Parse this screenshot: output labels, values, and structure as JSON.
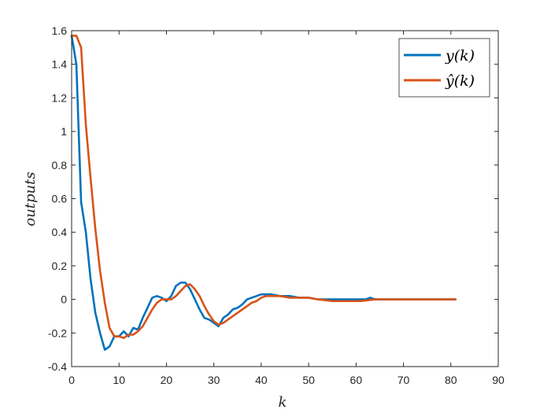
{
  "chart_data": {
    "type": "line",
    "title": "",
    "xlabel": "k",
    "ylabel": "outputs",
    "xlim": [
      0,
      90
    ],
    "ylim": [
      -0.4,
      1.6
    ],
    "x_ticks": [
      0,
      10,
      20,
      30,
      40,
      50,
      60,
      70,
      80,
      90
    ],
    "y_ticks": [
      -0.4,
      -0.2,
      0,
      0.2,
      0.4,
      0.6,
      0.8,
      1,
      1.2,
      1.4,
      1.6
    ],
    "x_tick_labels": [
      "0",
      "10",
      "20",
      "30",
      "40",
      "50",
      "60",
      "70",
      "80",
      "90"
    ],
    "y_tick_labels": [
      "-0.4",
      "-0.2",
      "0",
      "0.2",
      "0.4",
      "0.6",
      "0.8",
      "1",
      "1.2",
      "1.4",
      "1.6"
    ],
    "grid": false,
    "legend_position": "top-right",
    "series": [
      {
        "name": "y(k)",
        "color": "#0072BD",
        "points": [
          [
            0,
            1.57
          ],
          [
            1,
            1.4
          ],
          [
            2,
            0.58
          ],
          [
            3,
            0.4
          ],
          [
            4,
            0.12
          ],
          [
            5,
            -0.08
          ],
          [
            6,
            -0.2
          ],
          [
            7,
            -0.3
          ],
          [
            8,
            -0.28
          ],
          [
            9,
            -0.22
          ],
          [
            10,
            -0.22
          ],
          [
            11,
            -0.19
          ],
          [
            12,
            -0.22
          ],
          [
            13,
            -0.17
          ],
          [
            14,
            -0.18
          ],
          [
            15,
            -0.11
          ],
          [
            16,
            -0.05
          ],
          [
            17,
            0.01
          ],
          [
            18,
            0.02
          ],
          [
            19,
            0.01
          ],
          [
            20,
            -0.01
          ],
          [
            21,
            0.02
          ],
          [
            22,
            0.08
          ],
          [
            23,
            0.1
          ],
          [
            24,
            0.1
          ],
          [
            25,
            0.06
          ],
          [
            26,
            0.0
          ],
          [
            27,
            -0.06
          ],
          [
            28,
            -0.11
          ],
          [
            29,
            -0.12
          ],
          [
            30,
            -0.14
          ],
          [
            31,
            -0.16
          ],
          [
            32,
            -0.11
          ],
          [
            33,
            -0.09
          ],
          [
            34,
            -0.06
          ],
          [
            35,
            -0.05
          ],
          [
            36,
            -0.03
          ],
          [
            37,
            0.0
          ],
          [
            38,
            0.01
          ],
          [
            39,
            0.02
          ],
          [
            40,
            0.03
          ],
          [
            41,
            0.03
          ],
          [
            42,
            0.03
          ],
          [
            44,
            0.02
          ],
          [
            46,
            0.02
          ],
          [
            48,
            0.01
          ],
          [
            50,
            0.01
          ],
          [
            52,
            0.0
          ],
          [
            54,
            0.0
          ],
          [
            56,
            0.0
          ],
          [
            58,
            0.0
          ],
          [
            60,
            0.0
          ],
          [
            62,
            0.0
          ],
          [
            63,
            0.01
          ],
          [
            64,
            0.0
          ],
          [
            66,
            0.0
          ],
          [
            70,
            0.0
          ],
          [
            75,
            0.0
          ],
          [
            81,
            0.0
          ]
        ]
      },
      {
        "name": "ŷ(k)",
        "color": "#D95319",
        "points": [
          [
            0,
            1.57
          ],
          [
            1,
            1.57
          ],
          [
            2,
            1.5
          ],
          [
            3,
            1.04
          ],
          [
            4,
            0.72
          ],
          [
            5,
            0.42
          ],
          [
            6,
            0.17
          ],
          [
            7,
            -0.02
          ],
          [
            8,
            -0.17
          ],
          [
            9,
            -0.22
          ],
          [
            10,
            -0.22
          ],
          [
            11,
            -0.23
          ],
          [
            12,
            -0.21
          ],
          [
            13,
            -0.21
          ],
          [
            14,
            -0.19
          ],
          [
            15,
            -0.16
          ],
          [
            16,
            -0.11
          ],
          [
            17,
            -0.06
          ],
          [
            18,
            -0.02
          ],
          [
            19,
            0.0
          ],
          [
            20,
            0.0
          ],
          [
            21,
            0.0
          ],
          [
            22,
            0.02
          ],
          [
            23,
            0.05
          ],
          [
            24,
            0.08
          ],
          [
            25,
            0.09
          ],
          [
            26,
            0.06
          ],
          [
            27,
            0.02
          ],
          [
            28,
            -0.04
          ],
          [
            29,
            -0.09
          ],
          [
            30,
            -0.13
          ],
          [
            31,
            -0.15
          ],
          [
            32,
            -0.14
          ],
          [
            33,
            -0.12
          ],
          [
            34,
            -0.1
          ],
          [
            35,
            -0.08
          ],
          [
            36,
            -0.06
          ],
          [
            37,
            -0.04
          ],
          [
            38,
            -0.02
          ],
          [
            39,
            -0.01
          ],
          [
            40,
            0.01
          ],
          [
            41,
            0.02
          ],
          [
            42,
            0.02
          ],
          [
            43,
            0.02
          ],
          [
            44,
            0.02
          ],
          [
            46,
            0.01
          ],
          [
            48,
            0.01
          ],
          [
            50,
            0.01
          ],
          [
            52,
            0.0
          ],
          [
            55,
            -0.01
          ],
          [
            58,
            -0.01
          ],
          [
            61,
            -0.01
          ],
          [
            64,
            0.0
          ],
          [
            70,
            0.0
          ],
          [
            75,
            0.0
          ],
          [
            81,
            0.0
          ]
        ]
      }
    ]
  }
}
